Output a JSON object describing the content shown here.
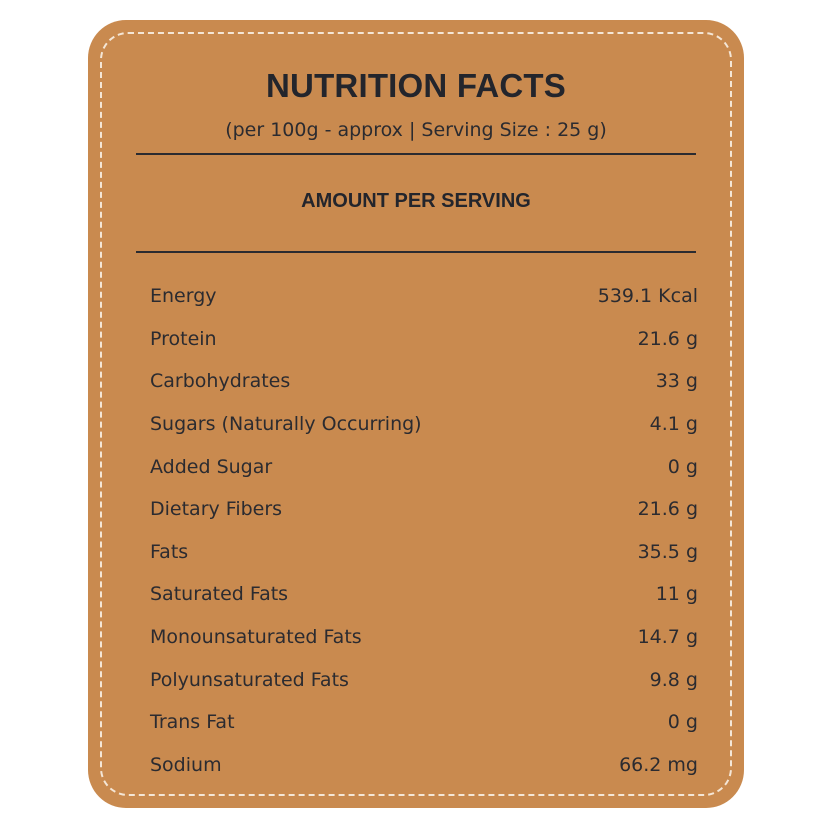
{
  "header": {
    "title": "NUTRITION FACTS",
    "subtitle": "(per 100g - approx | Serving Size : 25 g)"
  },
  "section": {
    "heading": "AMOUNT PER SERVING"
  },
  "nutrients": [
    {
      "label": "Energy",
      "value": "539.1 Kcal"
    },
    {
      "label": "Protein",
      "value": "21.6 g"
    },
    {
      "label": "Carbohydrates",
      "value": "33 g"
    },
    {
      "label": "Sugars (Naturally Occurring)",
      "value": "4.1 g"
    },
    {
      "label": "Added Sugar",
      "value": "0 g"
    },
    {
      "label": "Dietary Fibers",
      "value": "21.6 g"
    },
    {
      "label": "Fats",
      "value": "35.5 g"
    },
    {
      "label": "Saturated Fats",
      "value": "11 g"
    },
    {
      "label": "Monounsaturated Fats",
      "value": "14.7 g"
    },
    {
      "label": "Polyunsaturated Fats",
      "value": "9.8 g"
    },
    {
      "label": "Trans Fat",
      "value": "0 g"
    },
    {
      "label": "Sodium",
      "value": "66.2 mg"
    }
  ],
  "colors": {
    "card": "#c98a4f",
    "text": "#2b2b30",
    "stitch": "#f4e6d6"
  }
}
